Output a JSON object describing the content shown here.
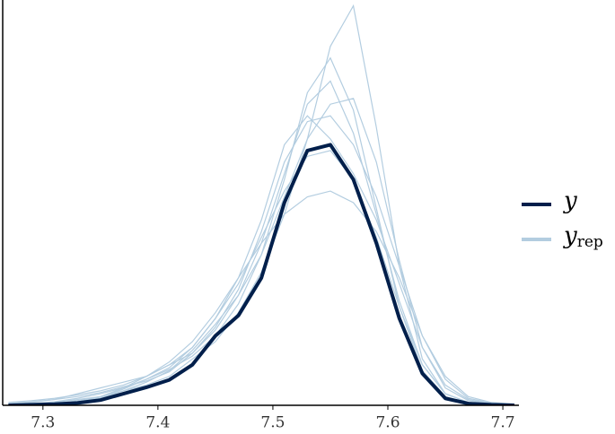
{
  "chart_data": {
    "type": "line",
    "x": [
      7.27,
      7.29,
      7.31,
      7.33,
      7.35,
      7.37,
      7.39,
      7.41,
      7.43,
      7.45,
      7.47,
      7.49,
      7.51,
      7.53,
      7.55,
      7.57,
      7.59,
      7.61,
      7.63,
      7.65,
      7.67,
      7.69,
      7.71
    ],
    "xlim": [
      7.265,
      7.714
    ],
    "xticks": [
      7.3,
      7.4,
      7.5,
      7.6,
      7.7
    ],
    "ylim": [
      0,
      7
    ],
    "series": [
      {
        "name": "y",
        "color": "#011f4b",
        "values": [
          0,
          0.01,
          0.02,
          0.04,
          0.09,
          0.2,
          0.31,
          0.44,
          0.7,
          1.2,
          1.55,
          2.2,
          3.5,
          4.4,
          4.5,
          3.9,
          2.8,
          1.5,
          0.55,
          0.12,
          0.03,
          0.01,
          0
        ]
      }
    ],
    "replicates": {
      "name": "y",
      "subscript": "rep",
      "color": "#b3cde0",
      "series": [
        [
          0,
          0.02,
          0.05,
          0.1,
          0.15,
          0.25,
          0.35,
          0.5,
          0.8,
          1.1,
          1.6,
          2.3,
          3.3,
          4.6,
          6.2,
          6.9,
          4.8,
          2.4,
          0.8,
          0.2,
          0.05,
          0.01,
          0
        ],
        [
          0.02,
          0.05,
          0.1,
          0.2,
          0.3,
          0.4,
          0.5,
          0.7,
          1.0,
          1.5,
          2.1,
          2.9,
          3.7,
          4.3,
          4.4,
          3.9,
          2.9,
          1.7,
          0.7,
          0.2,
          0.05,
          0.01,
          0
        ],
        [
          0,
          0.01,
          0.03,
          0.08,
          0.15,
          0.3,
          0.5,
          0.7,
          0.9,
          1.3,
          1.9,
          2.8,
          4.0,
          5.2,
          5.6,
          4.7,
          3.3,
          1.8,
          0.7,
          0.2,
          0.05,
          0.02,
          0.01
        ],
        [
          0.05,
          0.08,
          0.12,
          0.18,
          0.25,
          0.35,
          0.5,
          0.75,
          1.1,
          1.6,
          2.2,
          2.8,
          3.3,
          3.6,
          3.7,
          3.5,
          3.0,
          2.2,
          1.2,
          0.5,
          0.15,
          0.05,
          0.02
        ],
        [
          0,
          0,
          0.02,
          0.05,
          0.12,
          0.25,
          0.4,
          0.6,
          0.95,
          1.4,
          1.9,
          2.6,
          3.9,
          5.4,
          6.0,
          5.1,
          3.4,
          1.7,
          0.6,
          0.15,
          0.03,
          0.01,
          0
        ],
        [
          0.01,
          0.03,
          0.06,
          0.12,
          0.2,
          0.3,
          0.45,
          0.65,
          1.0,
          1.5,
          2.2,
          3.2,
          4.5,
          5.0,
          4.6,
          4.0,
          3.2,
          2.1,
          1.0,
          0.35,
          0.1,
          0.03,
          0.01
        ],
        [
          0,
          0.01,
          0.02,
          0.06,
          0.14,
          0.28,
          0.45,
          0.62,
          0.85,
          1.2,
          1.75,
          2.6,
          3.6,
          4.6,
          5.2,
          5.3,
          4.2,
          2.5,
          1.0,
          0.3,
          0.08,
          0.02,
          0
        ],
        [
          0.03,
          0.06,
          0.1,
          0.15,
          0.22,
          0.32,
          0.42,
          0.58,
          0.9,
          1.35,
          2.0,
          3.0,
          4.2,
          4.9,
          5.0,
          4.5,
          3.6,
          2.4,
          1.2,
          0.45,
          0.12,
          0.04,
          0.01
        ]
      ]
    }
  }
}
